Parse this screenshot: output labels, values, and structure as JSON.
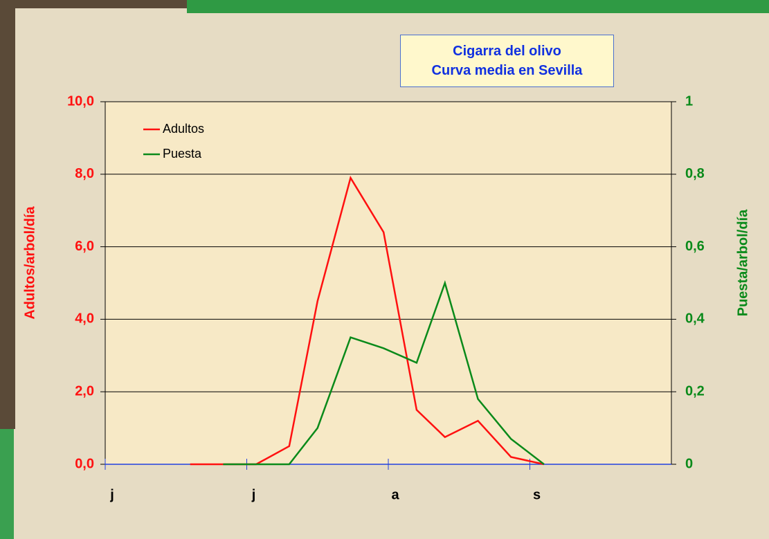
{
  "chart_data": {
    "type": "line",
    "title": [
      "Cigarra del olivo",
      "Curva media en Sevilla"
    ],
    "ylabel": "Adultos/arbol/día",
    "y2label": "Puesta/arbol/día",
    "x": [
      18,
      25,
      32,
      39,
      45,
      52,
      59,
      66,
      72,
      79,
      86,
      93
    ],
    "xlim": [
      0,
      120
    ],
    "xticks": [
      {
        "value": 0,
        "label": "j"
      },
      {
        "value": 30,
        "label": "j"
      },
      {
        "value": 60,
        "label": "a"
      },
      {
        "value": 90,
        "label": "s"
      }
    ],
    "ylim": [
      0,
      10
    ],
    "yticks": [
      {
        "value": 0,
        "label": "0,0"
      },
      {
        "value": 2,
        "label": "2,0"
      },
      {
        "value": 4,
        "label": "4,0"
      },
      {
        "value": 6,
        "label": "6,0"
      },
      {
        "value": 8,
        "label": "8,0"
      },
      {
        "value": 10,
        "label": "10,0"
      }
    ],
    "y2lim": [
      0,
      1
    ],
    "y2ticks": [
      0,
      {
        "value": 0.2,
        "label": "0,2"
      },
      {
        "value": 0.4,
        "label": "0,4"
      },
      {
        "value": 0.6,
        "label": "0,6"
      },
      {
        "value": 0.8,
        "label": "0,8"
      },
      1
    ],
    "grid": true,
    "legend": "upper left",
    "series": [
      {
        "name": "Adultos",
        "color": "#ff1010",
        "values": [
          0,
          0,
          0,
          0.5,
          4.5,
          7.9,
          6.4,
          1.5,
          0.75,
          1.2,
          0.2,
          0
        ]
      },
      {
        "name": "Puesta",
        "color": "#0a8a1a",
        "axis": "y2",
        "values": [
          null,
          0,
          0,
          0,
          0.1,
          0.35,
          0.32,
          0.28,
          0.5,
          0.18,
          0.07,
          0
        ]
      }
    ]
  }
}
